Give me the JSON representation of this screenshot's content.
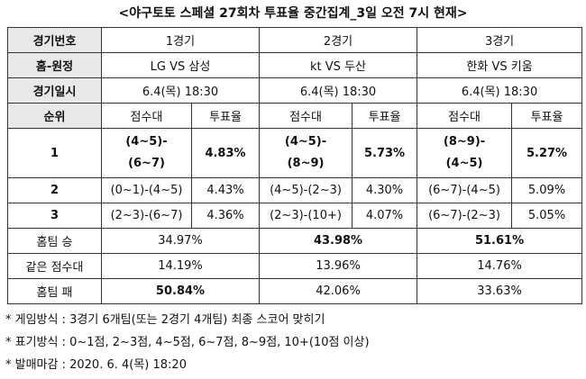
{
  "title": "<야구토토 스페셜 27회차 투표율 중간집계_3일 오전 7시 현재>",
  "table": {
    "info_rows": [
      [
        "경기번호",
        "1경기",
        "2경기",
        "3경기"
      ],
      [
        "홈-원정",
        "LG VS 삼성",
        "kt VS 두산",
        "한화 VS 키움"
      ],
      [
        "경기일시",
        "6.4(목) 18:30",
        "6.4(목) 18:30",
        "6.4(목) 18:30"
      ]
    ],
    "rank_header": [
      "순위",
      "점수대",
      "투표율",
      "점수대",
      "투표율",
      "점수대",
      "투표율"
    ],
    "rank_rows": [
      [
        "1",
        [
          "(4~5)-",
          "(6~7)"
        ],
        "4.83%",
        [
          "(4~5)-",
          "(8~9)"
        ],
        "5.73%",
        [
          "(8~9)-",
          "(4~5)"
        ],
        "5.27%"
      ],
      [
        "2",
        "(0~1)-(4~5)",
        "4.43%",
        "(4~5)-(2~3)",
        "4.30%",
        "(6~7)-(4~5)",
        "5.09%"
      ],
      [
        "3",
        "(2~3)-(6~7)",
        "4.36%",
        "(2~3)-(10+)",
        "4.07%",
        "(6~7)-(2~3)",
        "5.05%"
      ]
    ],
    "summary_rows": [
      [
        "홈팀 승",
        "34.97%",
        "43.98%",
        "51.61%"
      ],
      [
        "같은 점수대",
        "14.19%",
        "13.96%",
        "14.76%"
      ],
      [
        "홈팀 패",
        "50.84%",
        "42.06%",
        "33.63%"
      ]
    ]
  },
  "notes": [
    "* 게임방식 : 3경기 6개팀(또는 2경기 4개팀) 최종 스코어 맞히기",
    "* 표기방식 : 0~1점, 2~3점, 4~5점, 6~7점, 8~9점, 10+(10점 이상)",
    "* 발매마감 : 2020. 6. 4(목) 18:20"
  ]
}
